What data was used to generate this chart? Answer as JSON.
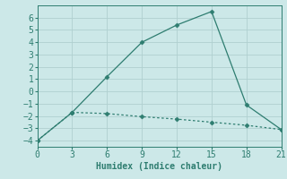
{
  "line1_x": [
    0,
    3,
    6,
    9,
    12,
    15,
    18,
    21
  ],
  "line1_y": [
    -4,
    -1.7,
    1.2,
    4.0,
    5.4,
    6.5,
    -1.1,
    -3.1
  ],
  "line2_x": [
    0,
    3,
    6,
    9,
    12,
    15,
    18,
    21
  ],
  "line2_y": [
    -4,
    -1.7,
    -1.8,
    -2.05,
    -2.25,
    -2.5,
    -2.75,
    -3.1
  ],
  "line_color": "#2e7d70",
  "marker": "D",
  "marker_size": 2.5,
  "xlabel": "Humidex (Indice chaleur)",
  "xlim": [
    0,
    21
  ],
  "ylim": [
    -4.5,
    7
  ],
  "xticks": [
    0,
    3,
    6,
    9,
    12,
    15,
    18,
    21
  ],
  "yticks": [
    -4,
    -3,
    -2,
    -1,
    0,
    1,
    2,
    3,
    4,
    5,
    6
  ],
  "background_color": "#cce8e8",
  "grid_color": "#b0d0d0",
  "font_family": "monospace",
  "xlabel_fontsize": 7,
  "tick_fontsize": 7
}
